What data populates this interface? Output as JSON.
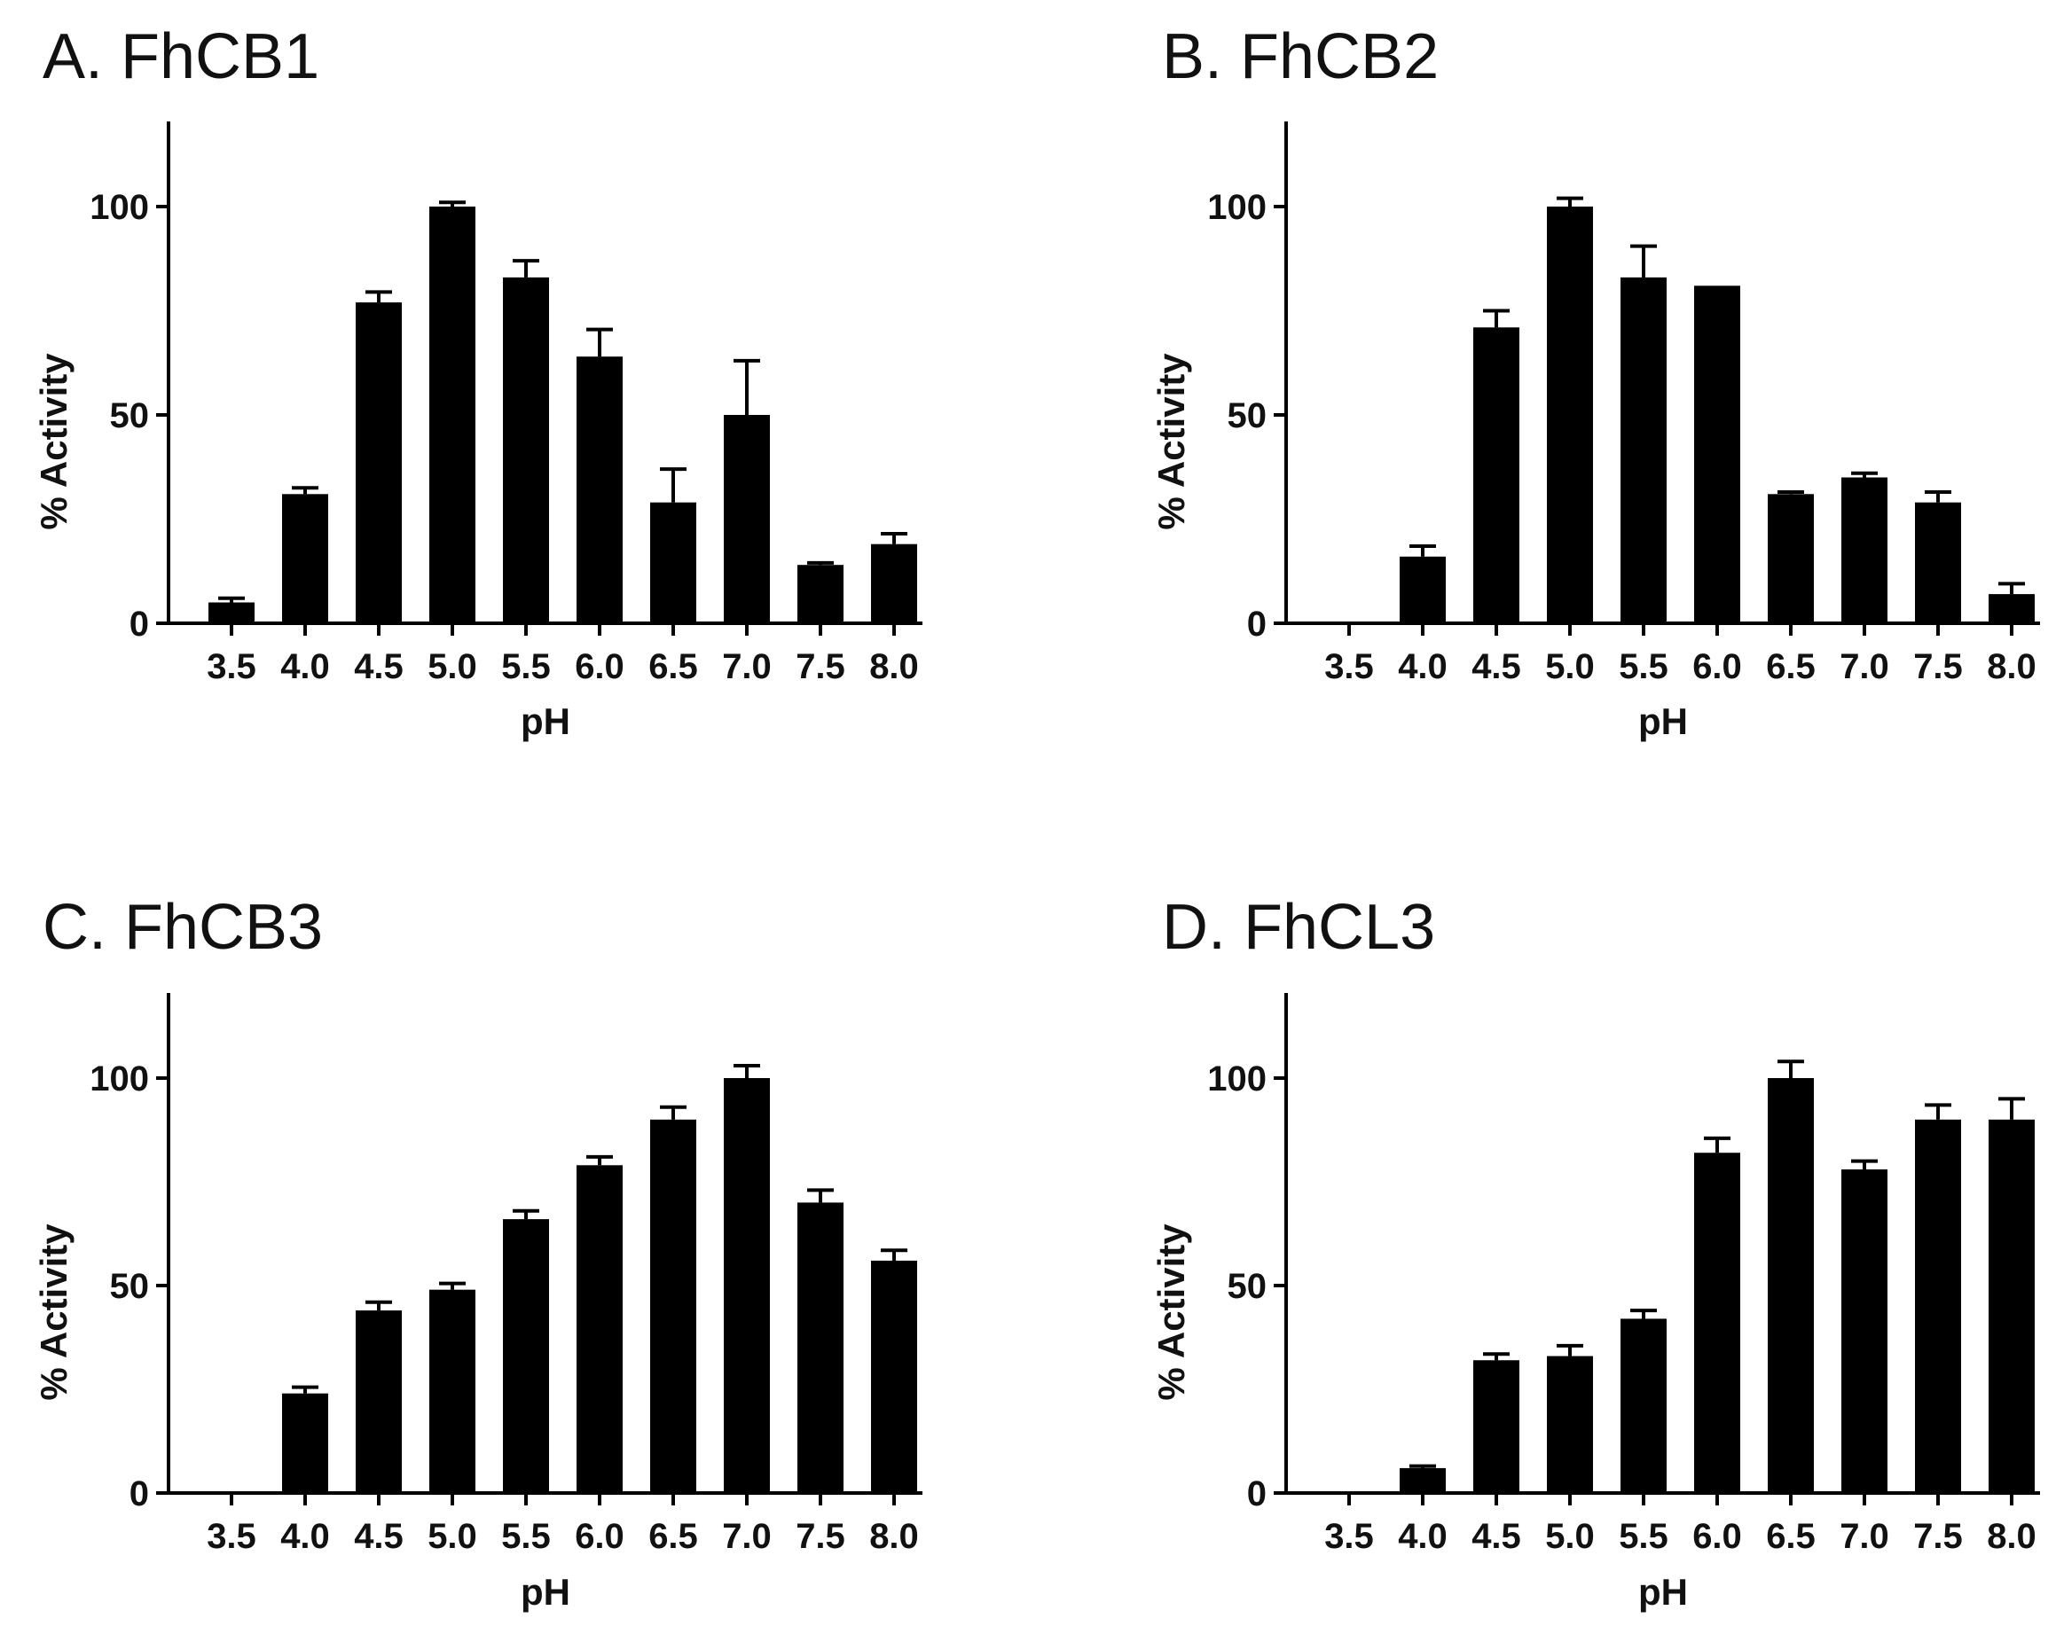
{
  "chart_data": [
    {
      "type": "bar",
      "title": "A. FhCB1",
      "xlabel": "pH",
      "ylabel": "% Activity",
      "categories": [
        "3.5",
        "4.0",
        "4.5",
        "5.0",
        "5.5",
        "6.0",
        "6.5",
        "7.0",
        "7.5",
        "8.0"
      ],
      "values": [
        5,
        31,
        77,
        100,
        83,
        64,
        29,
        50,
        14,
        19
      ],
      "errors": [
        1,
        1.5,
        2.5,
        1,
        4,
        6.5,
        8,
        13,
        0.5,
        2.5
      ],
      "yticks": [
        0,
        50,
        100
      ],
      "ylim": [
        0,
        120
      ]
    },
    {
      "type": "bar",
      "title": "B. FhCB2",
      "xlabel": "pH",
      "ylabel": "% Activity",
      "categories": [
        "3.5",
        "4.0",
        "4.5",
        "5.0",
        "5.5",
        "6.0",
        "6.5",
        "7.0",
        "7.5",
        "8.0"
      ],
      "values": [
        0,
        16,
        71,
        100,
        83,
        81,
        31,
        35,
        29,
        7
      ],
      "errors": [
        0,
        2.5,
        4,
        2,
        7.5,
        0,
        0.5,
        1,
        2.5,
        2.5
      ],
      "yticks": [
        0,
        50,
        100
      ],
      "ylim": [
        0,
        120
      ]
    },
    {
      "type": "bar",
      "title": "C. FhCB3",
      "xlabel": "pH",
      "ylabel": "% Activity",
      "categories": [
        "3.5",
        "4.0",
        "4.5",
        "5.0",
        "5.5",
        "6.0",
        "6.5",
        "7.0",
        "7.5",
        "8.0"
      ],
      "values": [
        0,
        24,
        44,
        49,
        66,
        79,
        90,
        100,
        70,
        56
      ],
      "errors": [
        0,
        1.5,
        2,
        1.5,
        2,
        2,
        3,
        3,
        3,
        2.5
      ],
      "yticks": [
        0,
        50,
        100
      ],
      "ylim": [
        0,
        120
      ]
    },
    {
      "type": "bar",
      "title": "D. FhCL3",
      "xlabel": "pH",
      "ylabel": "% Activity",
      "categories": [
        "3.5",
        "4.0",
        "4.5",
        "5.0",
        "5.5",
        "6.0",
        "6.5",
        "7.0",
        "7.5",
        "8.0"
      ],
      "values": [
        0,
        6,
        32,
        33,
        42,
        82,
        100,
        78,
        90,
        90
      ],
      "errors": [
        0,
        0.5,
        1.5,
        2.5,
        2,
        3.5,
        4,
        2,
        3.5,
        5
      ],
      "yticks": [
        0,
        50,
        100
      ],
      "ylim": [
        0,
        120
      ]
    }
  ]
}
